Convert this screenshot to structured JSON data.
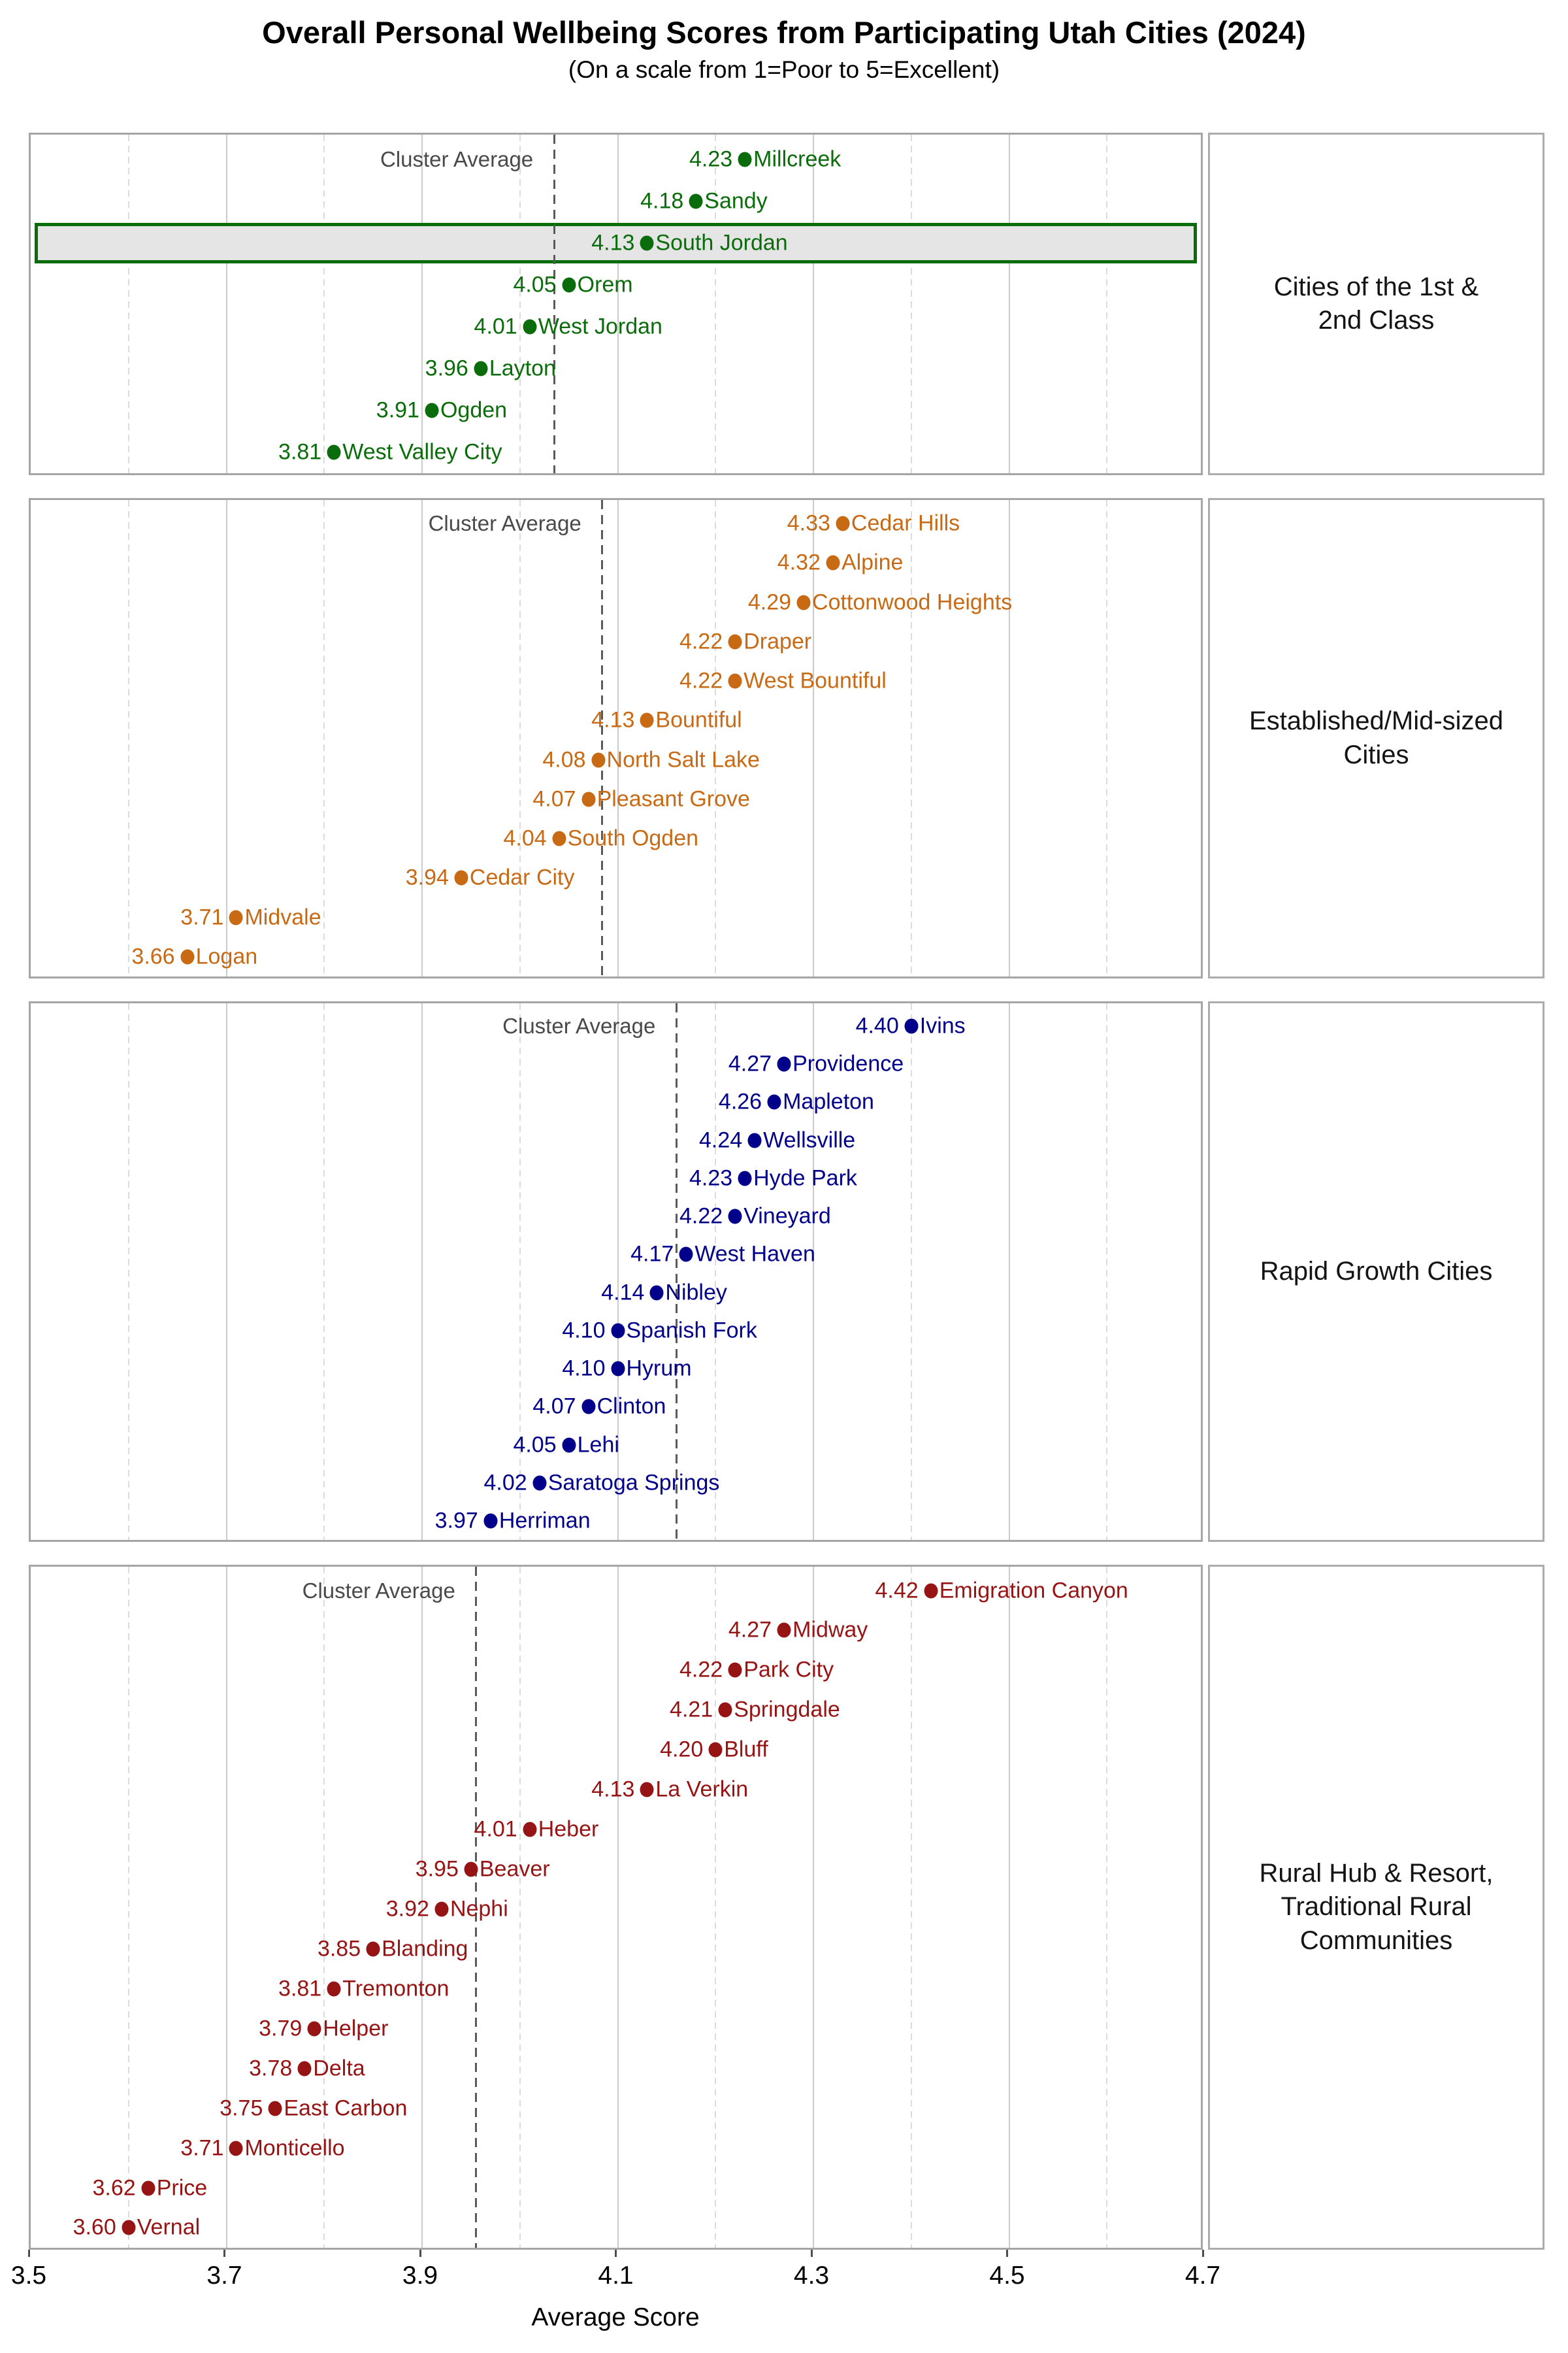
{
  "title": "Overall Personal Wellbeing Scores from Participating Utah Cities (2024)",
  "subtitle": "(On a scale from 1=Poor to 5=Excellent)",
  "axis": {
    "label": "Average Score",
    "min": 3.5,
    "max": 4.7,
    "major_ticks": [
      3.5,
      3.7,
      3.9,
      4.1,
      4.3,
      4.5,
      4.7
    ],
    "tick_labels": [
      "3.5",
      "3.7",
      "3.9",
      "4.1",
      "4.3",
      "4.5",
      "4.7"
    ],
    "minor_gridlines": [
      3.6,
      3.8,
      4.0,
      4.2,
      4.4,
      4.6
    ],
    "grid": "on"
  },
  "cluster_average_label": "Cluster Average",
  "highlight": {
    "city": "South Jordan",
    "fill": "#E5E5E5"
  },
  "colors": {
    "cluster1": "#0A6C0A",
    "cluster2": "#C86A14",
    "cluster3": "#00008B",
    "cluster4": "#961414",
    "average_line": "#5A5A5A",
    "average_text": "#4A4A4A"
  },
  "chart_data": {
    "type": "scatter",
    "title": "Overall Personal Wellbeing Scores from Participating Utah Cities (2024)",
    "xlabel": "Average Score",
    "xlim": [
      3.5,
      4.7
    ],
    "legend_position": "right-facet-strips",
    "clusters": [
      {
        "name": "Cities of the 1st & 2nd Class",
        "strip_lines": [
          "Cities of the 1st &",
          "2nd Class"
        ],
        "color": "#0A6C0A",
        "cities": [
          {
            "name": "Millcreek",
            "score": 4.23
          },
          {
            "name": "Sandy",
            "score": 4.18
          },
          {
            "name": "South Jordan",
            "score": 4.13
          },
          {
            "name": "Orem",
            "score": 4.05
          },
          {
            "name": "West Jordan",
            "score": 4.01
          },
          {
            "name": "Layton",
            "score": 3.96
          },
          {
            "name": "Ogden",
            "score": 3.91
          },
          {
            "name": "West Valley City",
            "score": 3.81
          }
        ]
      },
      {
        "name": "Established/Mid-sized Cities",
        "strip_lines": [
          "Established/Mid-sized",
          "Cities"
        ],
        "color": "#C86A14",
        "cities": [
          {
            "name": "Cedar Hills",
            "score": 4.33
          },
          {
            "name": "Alpine",
            "score": 4.32
          },
          {
            "name": "Cottonwood Heights",
            "score": 4.29
          },
          {
            "name": "Draper",
            "score": 4.22
          },
          {
            "name": "West Bountiful",
            "score": 4.22
          },
          {
            "name": "Bountiful",
            "score": 4.13
          },
          {
            "name": "North Salt Lake",
            "score": 4.08
          },
          {
            "name": "Pleasant Grove",
            "score": 4.07
          },
          {
            "name": "South Ogden",
            "score": 4.04
          },
          {
            "name": "Cedar City",
            "score": 3.94
          },
          {
            "name": "Midvale",
            "score": 3.71
          },
          {
            "name": "Logan",
            "score": 3.66
          }
        ]
      },
      {
        "name": "Rapid Growth Cities",
        "strip_lines": [
          "Rapid Growth Cities"
        ],
        "color": "#00008B",
        "cities": [
          {
            "name": "Ivins",
            "score": 4.4
          },
          {
            "name": "Providence",
            "score": 4.27
          },
          {
            "name": "Mapleton",
            "score": 4.26
          },
          {
            "name": "Wellsville",
            "score": 4.24
          },
          {
            "name": "Hyde Park",
            "score": 4.23
          },
          {
            "name": "Vineyard",
            "score": 4.22
          },
          {
            "name": "West Haven",
            "score": 4.17
          },
          {
            "name": "Nibley",
            "score": 4.14
          },
          {
            "name": "Spanish Fork",
            "score": 4.1
          },
          {
            "name": "Hyrum",
            "score": 4.1
          },
          {
            "name": "Clinton",
            "score": 4.07
          },
          {
            "name": "Lehi",
            "score": 4.05
          },
          {
            "name": "Saratoga Springs",
            "score": 4.02
          },
          {
            "name": "Herriman",
            "score": 3.97
          }
        ]
      },
      {
        "name": "Rural Hub & Resort, Traditional Rural Communities",
        "strip_lines": [
          "Rural Hub & Resort,",
          "Traditional Rural",
          "Communities"
        ],
        "color": "#961414",
        "cities": [
          {
            "name": "Emigration Canyon",
            "score": 4.42
          },
          {
            "name": "Midway",
            "score": 4.27
          },
          {
            "name": "Park City",
            "score": 4.22
          },
          {
            "name": "Springdale",
            "score": 4.21
          },
          {
            "name": "Bluff",
            "score": 4.2
          },
          {
            "name": "La Verkin",
            "score": 4.13
          },
          {
            "name": "Heber",
            "score": 4.01
          },
          {
            "name": "Beaver",
            "score": 3.95
          },
          {
            "name": "Nephi",
            "score": 3.92
          },
          {
            "name": "Blanding",
            "score": 3.85
          },
          {
            "name": "Tremonton",
            "score": 3.81
          },
          {
            "name": "Helper",
            "score": 3.79
          },
          {
            "name": "Delta",
            "score": 3.78
          },
          {
            "name": "East Carbon",
            "score": 3.75
          },
          {
            "name": "Monticello",
            "score": 3.71
          },
          {
            "name": "Price",
            "score": 3.62
          },
          {
            "name": "Vernal",
            "score": 3.6
          }
        ]
      }
    ]
  }
}
